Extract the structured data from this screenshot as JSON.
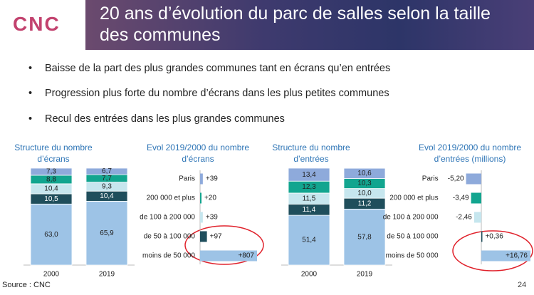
{
  "logo": "CNC",
  "title": "20 ans d’évolution du parc de salles selon la taille des communes",
  "bullets": [
    "Baisse de la part des plus grandes communes tant en écrans qu’en entrées",
    "Progression plus forte du nombre d’écrans dans les plus petites communes",
    "Recul des entrées dans les plus grandes communes"
  ],
  "source": "Source : CNC",
  "page_number": "24",
  "chart_data": [
    {
      "type": "stacked_bar",
      "title": "Structure du nombre d’écrans",
      "categories": [
        "2000",
        "2019"
      ],
      "series": [
        {
          "color": "#9dc3e6",
          "values": [
            63.0,
            65.9
          ],
          "value_labels": [
            "63,0",
            "65,9"
          ]
        },
        {
          "color": "#1f4e5c",
          "values": [
            10.5,
            10.4
          ],
          "value_labels": [
            "10,5",
            "10,4"
          ]
        },
        {
          "color": "#c6e6ee",
          "values": [
            10.4,
            9.3
          ],
          "value_labels": [
            "10,4",
            "9,3"
          ]
        },
        {
          "color": "#12a58f",
          "values": [
            8.8,
            7.7
          ],
          "value_labels": [
            "8,8",
            "7,7"
          ]
        },
        {
          "color": "#8eaadb",
          "values": [
            7.3,
            6.7
          ],
          "value_labels": [
            "7,3",
            "6,7"
          ]
        }
      ]
    },
    {
      "type": "hbar",
      "title": "Evol 2019/2000 du nombre d’écrans",
      "categories": [
        "Paris",
        "200 000 et plus",
        "de 100 à 200 000",
        "de 50 à 100 000",
        "moins de 50 000"
      ],
      "values": [
        39,
        20,
        39,
        97,
        807
      ],
      "value_labels": [
        "+39",
        "+20",
        "+39",
        "+97",
        "+807"
      ],
      "colors": [
        "#8eaadb",
        "#12a58f",
        "#c6e6ee",
        "#1f4e5c",
        "#9dc3e6"
      ]
    },
    {
      "type": "stacked_bar",
      "title": "Structure du nombre d’entrées",
      "categories": [
        "2000",
        "2019"
      ],
      "series": [
        {
          "color": "#9dc3e6",
          "values": [
            51.4,
            57.8
          ],
          "value_labels": [
            "51,4",
            "57,8"
          ]
        },
        {
          "color": "#1f4e5c",
          "values": [
            11.4,
            11.2
          ],
          "value_labels": [
            "11,4",
            "11,2"
          ]
        },
        {
          "color": "#c6e6ee",
          "values": [
            11.5,
            10.0
          ],
          "value_labels": [
            "11,5",
            "10,0"
          ]
        },
        {
          "color": "#12a58f",
          "values": [
            12.3,
            10.3
          ],
          "value_labels": [
            "12,3",
            "10,3"
          ]
        },
        {
          "color": "#8eaadb",
          "values": [
            13.4,
            10.6
          ],
          "value_labels": [
            "13,4",
            "10,6"
          ]
        }
      ]
    },
    {
      "type": "hbar",
      "title": "Evol 2019/2000 du nombre d’entrées (millions)",
      "categories": [
        "Paris",
        "200 000 et plus",
        "de 100 à 200 000",
        "de 50 à 100 000",
        "moins de 50 000"
      ],
      "values": [
        -5.2,
        -3.49,
        -2.46,
        0.36,
        16.76
      ],
      "value_labels": [
        "-5,20",
        "-3,49",
        "-2,46",
        "+0,36",
        "+16,76"
      ],
      "colors": [
        "#8eaadb",
        "#12a58f",
        "#c6e6ee",
        "#1f4e5c",
        "#9dc3e6"
      ]
    }
  ]
}
